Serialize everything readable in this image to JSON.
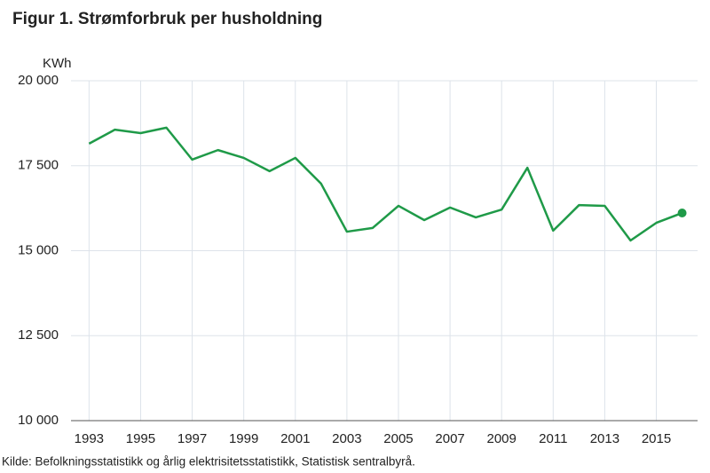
{
  "chart_data": {
    "type": "line",
    "title": "Figur 1. Strømforbruk per husholdning",
    "y_label": "KWh",
    "source": "Kilde: Befolkningsstatistikk og årlig elektrisitetsstatistikk, Statistisk sentralbyrå.",
    "x": [
      1993,
      1994,
      1995,
      1996,
      1997,
      1998,
      1999,
      2000,
      2001,
      2002,
      2003,
      2004,
      2005,
      2006,
      2007,
      2008,
      2009,
      2010,
      2011,
      2012,
      2013,
      2014,
      2015,
      2016
    ],
    "series": [
      {
        "name": "Strømforbruk per husholdning",
        "color": "#1f9a48",
        "values": [
          18150,
          18560,
          18460,
          18620,
          17680,
          17960,
          17730,
          17340,
          17730,
          16970,
          15560,
          15670,
          16320,
          15900,
          16270,
          15980,
          16210,
          17440,
          15590,
          16340,
          16320,
          15300,
          15820,
          16110
        ]
      }
    ],
    "xlim": [
      1992.3,
      2016.6
    ],
    "xticks": [
      1993,
      1995,
      1997,
      1999,
      2001,
      2003,
      2005,
      2007,
      2009,
      2011,
      2013,
      2015
    ],
    "ylim": [
      10000,
      20000
    ],
    "yticks": [
      {
        "value": 10000,
        "label": "10 000"
      },
      {
        "value": 12500,
        "label": "12 500"
      },
      {
        "value": 15000,
        "label": "15 000"
      },
      {
        "value": 17500,
        "label": "17 500"
      },
      {
        "value": 20000,
        "label": "20 000"
      }
    ],
    "grid": true,
    "last_point_marker": true
  }
}
